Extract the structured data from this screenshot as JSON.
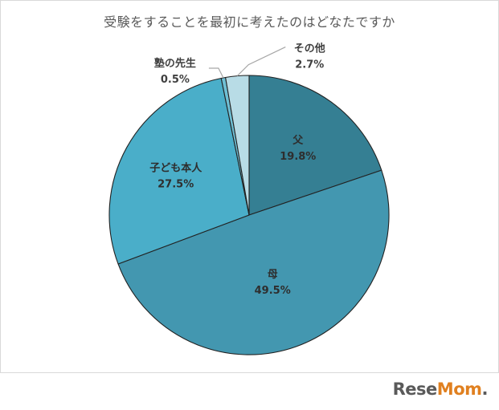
{
  "chart_data": {
    "type": "pie",
    "title": "受験をすることを最初に考えたのはどなたですか",
    "start_angle_deg": 0,
    "direction": "clockwise",
    "slices": [
      {
        "label": "父",
        "value": 19.8,
        "value_label": "19.8%",
        "color": "#357f93",
        "label_style": "inside",
        "text_color": "#2e2e2e"
      },
      {
        "label": "母",
        "value": 49.5,
        "value_label": "49.5%",
        "color": "#4397b0",
        "label_style": "inside",
        "text_color": "#2e2e2e"
      },
      {
        "label": "子ども本人",
        "value": 27.5,
        "value_label": "27.5%",
        "color": "#4aaec9",
        "label_style": "inside",
        "text_color": "#2e2e2e"
      },
      {
        "label": "塾の先生",
        "value": 0.5,
        "value_label": "0.5%",
        "color": "#6fbfd4",
        "label_style": "outside-left",
        "text_color": "#404040"
      },
      {
        "label": "その他",
        "value": 2.7,
        "value_label": "2.7%",
        "color": "#b8dce6",
        "label_style": "outside-right",
        "text_color": "#404040"
      }
    ]
  },
  "watermark": {
    "brand_main": "Rese",
    "brand_accent": "Mom",
    "brand_dot": "."
  }
}
